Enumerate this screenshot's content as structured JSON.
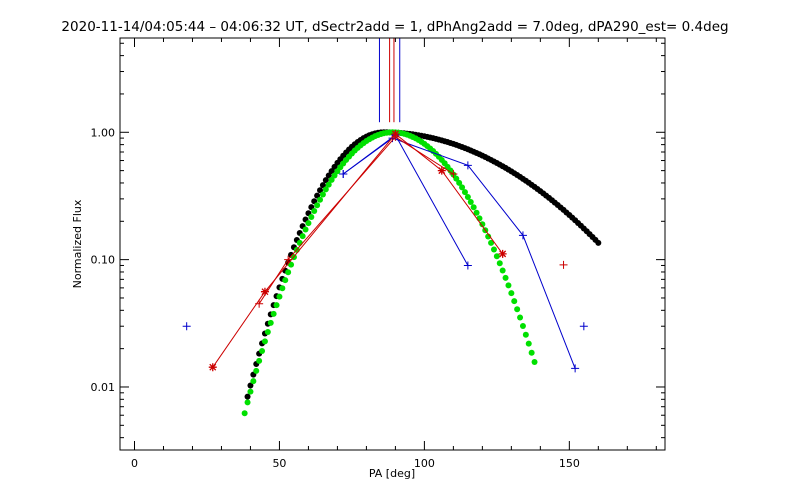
{
  "chart_data": {
    "type": "scatter",
    "title": "2020-11-14/04:05:44 – 04:06:32 UT, dSectr2add = 1, dPhAng2add = 7.0deg, dPA290_est=  0.4deg",
    "xlabel": "PA [deg]",
    "ylabel": "Normalized Flux",
    "xlim": [
      -5,
      183
    ],
    "ylim": [
      0.0032,
      5.5
    ],
    "yscale": "log",
    "x_ticks": [
      0,
      50,
      100,
      150
    ],
    "x_tick_labels": [
      "0",
      "50",
      "100",
      "150"
    ],
    "y_ticks": [
      0.01,
      0.1,
      1.0
    ],
    "y_tick_labels": [
      "0.01",
      "0.10",
      "1.00"
    ],
    "series": [
      {
        "name": "blue-plus-outer",
        "color": "#0000cc",
        "marker": "plus",
        "line": true,
        "x": [
          72,
          89,
          115,
          134,
          152
        ],
        "y": [
          0.47,
          0.9,
          0.55,
          0.155,
          0.014
        ]
      },
      {
        "name": "blue-plus-inner",
        "color": "#0000cc",
        "marker": "plus",
        "line": true,
        "x": [
          72,
          90,
          115
        ],
        "y": [
          0.47,
          0.95,
          0.09
        ]
      },
      {
        "name": "blue-plus-isolated",
        "color": "#0000cc",
        "marker": "plus",
        "line": false,
        "x": [
          18,
          155
        ],
        "y": [
          0.03,
          0.03
        ]
      },
      {
        "name": "red-star",
        "color": "#cc0000",
        "marker": "star",
        "line": true,
        "x": [
          27,
          45,
          90,
          106,
          127
        ],
        "y": [
          0.0143,
          0.056,
          0.97,
          0.5,
          0.111
        ]
      },
      {
        "name": "red-plus",
        "color": "#cc0000",
        "marker": "plus",
        "line": true,
        "x": [
          43,
          53,
          90,
          110
        ],
        "y": [
          0.045,
          0.1,
          0.92,
          0.47
        ]
      },
      {
        "name": "red-plus-isolated",
        "color": "#cc0000",
        "marker": "plus",
        "line": false,
        "x": [
          148
        ],
        "y": [
          0.091
        ]
      },
      {
        "name": "black-dots-fit",
        "color": "#000000",
        "marker": "dot",
        "line": false,
        "model": {
          "kind": "gaussian_log_asym",
          "peak_x": 86,
          "sigma_left": 15.2,
          "sigma_right": 37.0,
          "x_start": 39,
          "x_end": 160,
          "step": 1
        }
      },
      {
        "name": "green-dots-fit",
        "color": "#00e000",
        "marker": "dot",
        "line": false,
        "model": {
          "kind": "gaussian_log_asym",
          "peak_x": 89,
          "sigma_left": 16.0,
          "sigma_right": 17.0,
          "x_start": 38,
          "x_end": 138,
          "step": 1
        }
      }
    ],
    "vertical_lines": [
      {
        "name": "blue-vline-1",
        "color": "#0000cc",
        "x": 84.5,
        "y_from": 1.2
      },
      {
        "name": "blue-vline-2",
        "color": "#0000cc",
        "x": 91.5,
        "y_from": 1.2
      },
      {
        "name": "red-vline-1",
        "color": "#cc0000",
        "x": 88,
        "y_from": 1.2
      },
      {
        "name": "red-vline-2",
        "color": "#cc0000",
        "x": 89.5,
        "y_from": 1.2
      }
    ]
  }
}
